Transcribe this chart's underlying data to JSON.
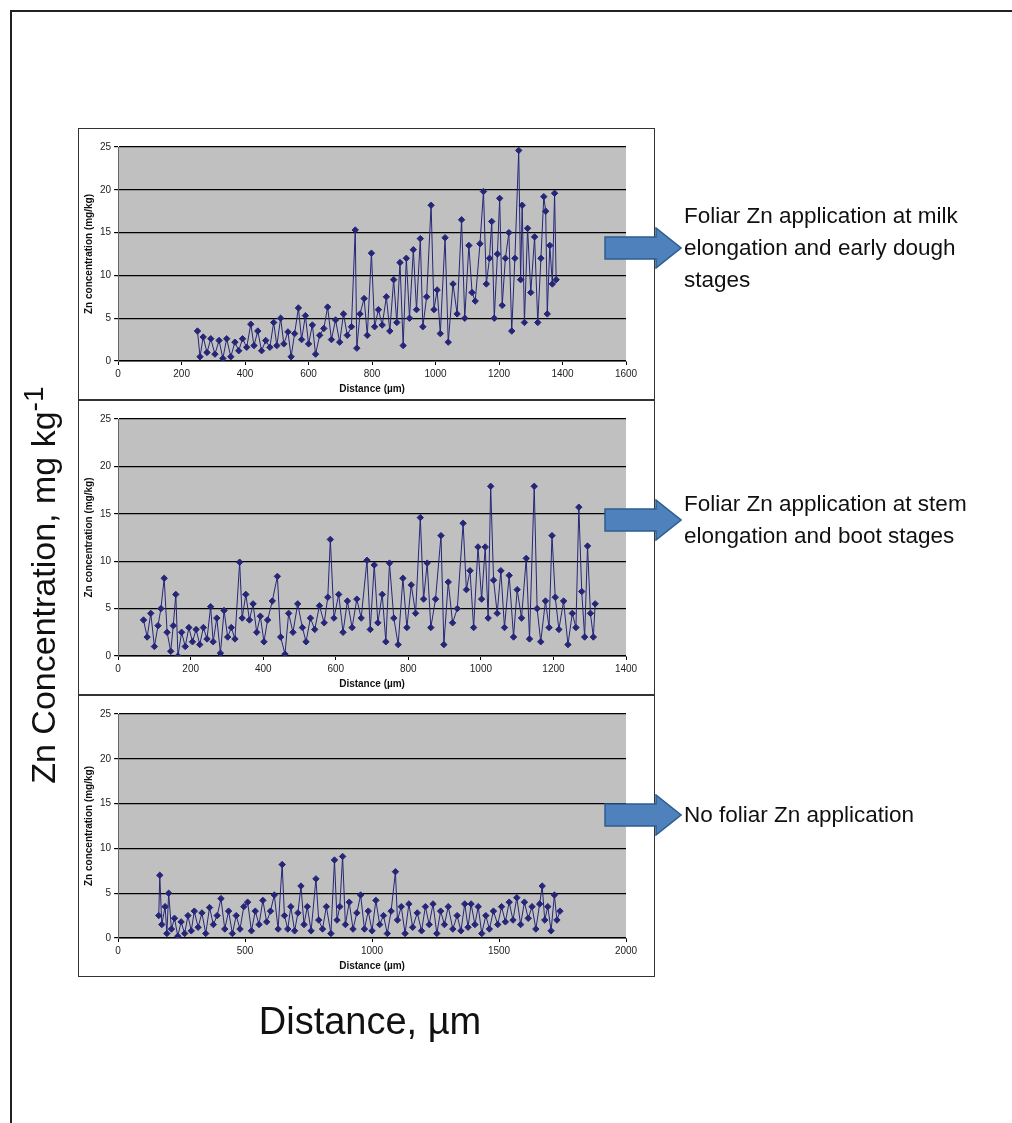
{
  "chart_data": [
    {
      "type": "line",
      "xlabel": "Distance (µm)",
      "ylabel": "Zn concentration (mg/kg)",
      "color": "#262678",
      "marker": "diamond",
      "grid": "y",
      "xlim": [
        0,
        1600
      ],
      "xticks": [
        0,
        200,
        400,
        600,
        800,
        1000,
        1200,
        1400,
        1600
      ],
      "ylim": [
        0,
        25
      ],
      "yticks": [
        0,
        5,
        10,
        15,
        20,
        25
      ],
      "annotations": [
        "Foliar Zn application at milk elongation and early dough stages",
        "Zn Concentration, mg kg$^{-1}$"
      ],
      "x": [
        250,
        258,
        268,
        280,
        292,
        305,
        318,
        330,
        342,
        355,
        368,
        380,
        392,
        405,
        418,
        428,
        440,
        452,
        465,
        478,
        490,
        500,
        512,
        522,
        535,
        545,
        556,
        568,
        578,
        590,
        600,
        612,
        622,
        635,
        648,
        660,
        672,
        685,
        698,
        710,
        722,
        735,
        747,
        752,
        762,
        775,
        785,
        798,
        808,
        820,
        832,
        845,
        856,
        868,
        878,
        888,
        898,
        908,
        918,
        930,
        940,
        952,
        960,
        972,
        986,
        995,
        1005,
        1015,
        1030,
        1040,
        1055,
        1068,
        1082,
        1092,
        1105,
        1115,
        1125,
        1140,
        1151,
        1160,
        1170,
        1177,
        1185,
        1195,
        1202,
        1210,
        1220,
        1231,
        1240,
        1250,
        1262,
        1268,
        1273,
        1280,
        1290,
        1300,
        1312,
        1322,
        1332,
        1341,
        1347,
        1352,
        1360,
        1368,
        1375,
        1380
      ],
      "values": [
        3.5,
        0.5,
        2.8,
        1.0,
        2.6,
        0.8,
        2.4,
        0.3,
        2.6,
        0.5,
        2.2,
        1.2,
        2.6,
        1.6,
        4.3,
        1.8,
        3.5,
        1.2,
        2.4,
        1.6,
        4.5,
        1.8,
        5.0,
        2.0,
        3.4,
        0.5,
        3.2,
        6.2,
        2.5,
        5.3,
        2.0,
        4.2,
        0.8,
        3.0,
        3.8,
        6.3,
        2.5,
        4.8,
        2.2,
        5.5,
        3.0,
        4.0,
        15.3,
        1.5,
        5.5,
        7.3,
        3.0,
        12.6,
        4.0,
        6.0,
        4.2,
        7.5,
        3.5,
        9.5,
        4.5,
        11.5,
        1.8,
        12.0,
        5.0,
        13.0,
        6.0,
        14.3,
        4.0,
        7.5,
        18.2,
        6.0,
        8.3,
        3.2,
        14.4,
        2.2,
        9.0,
        5.5,
        16.5,
        5.0,
        13.5,
        8.0,
        7.0,
        13.7,
        19.8,
        9.0,
        12.0,
        16.3,
        5.0,
        12.5,
        19.0,
        6.5,
        12.0,
        15.0,
        3.5,
        12.0,
        24.6,
        9.5,
        18.2,
        4.5,
        15.5,
        8.0,
        14.5,
        4.5,
        12.0,
        19.2,
        17.5,
        5.5,
        13.5,
        9.0,
        19.6,
        9.5
      ]
    },
    {
      "type": "line",
      "xlabel": "Distance (µm)",
      "ylabel": "Zn concentration (mg/kg)",
      "color": "#262678",
      "marker": "diamond",
      "grid": "y",
      "xlim": [
        0,
        1400
      ],
      "xticks": [
        0,
        200,
        400,
        600,
        800,
        1000,
        1200,
        1400
      ],
      "ylim": [
        0,
        25
      ],
      "yticks": [
        0,
        5,
        10,
        15,
        20,
        25
      ],
      "annotations": [
        "Foliar Zn application at stem elongation and boot stages"
      ],
      "x": [
        70,
        80,
        90,
        100,
        110,
        118,
        127,
        135,
        145,
        152,
        159,
        165,
        175,
        185,
        195,
        205,
        215,
        225,
        235,
        245,
        255,
        262,
        272,
        282,
        292,
        302,
        312,
        322,
        335,
        342,
        352,
        362,
        372,
        382,
        392,
        402,
        412,
        425,
        439,
        448,
        460,
        470,
        482,
        495,
        508,
        518,
        530,
        542,
        555,
        568,
        578,
        585,
        595,
        608,
        620,
        632,
        645,
        658,
        670,
        686,
        695,
        706,
        716,
        728,
        738,
        748,
        760,
        772,
        785,
        796,
        808,
        820,
        833,
        842,
        852,
        862,
        875,
        890,
        898,
        910,
        922,
        935,
        951,
        960,
        970,
        980,
        992,
        1002,
        1012,
        1020,
        1027,
        1035,
        1045,
        1055,
        1065,
        1078,
        1090,
        1100,
        1112,
        1125,
        1134,
        1147,
        1155,
        1165,
        1178,
        1188,
        1196,
        1205,
        1215,
        1228,
        1240,
        1252,
        1262,
        1270,
        1278,
        1286,
        1294,
        1302,
        1310,
        1315
      ],
      "values": [
        3.8,
        2.0,
        4.5,
        1.0,
        3.2,
        5.0,
        8.2,
        2.5,
        0.5,
        3.2,
        6.5,
        0.0,
        2.5,
        1.0,
        3.0,
        1.5,
        2.8,
        1.2,
        3.0,
        1.8,
        5.2,
        1.5,
        4.0,
        0.3,
        4.8,
        2.0,
        3.0,
        1.8,
        9.9,
        4.0,
        6.5,
        3.8,
        5.5,
        2.5,
        4.2,
        1.5,
        3.8,
        5.8,
        8.4,
        2.0,
        0.2,
        4.5,
        2.5,
        5.5,
        3.0,
        1.5,
        4.0,
        2.8,
        5.3,
        3.5,
        6.2,
        12.3,
        4.0,
        6.5,
        2.5,
        5.8,
        3.0,
        6.0,
        4.0,
        10.1,
        2.8,
        9.6,
        3.5,
        6.5,
        1.5,
        9.8,
        4.0,
        1.2,
        8.2,
        3.0,
        7.5,
        4.5,
        14.6,
        6.0,
        9.8,
        3.0,
        6.0,
        12.7,
        1.2,
        7.8,
        3.5,
        5.0,
        14.0,
        7.0,
        9.0,
        3.0,
        11.5,
        6.0,
        11.5,
        4.0,
        17.9,
        8.0,
        4.5,
        9.0,
        3.0,
        8.5,
        2.0,
        7.0,
        4.0,
        10.3,
        1.8,
        17.9,
        5.0,
        1.5,
        5.8,
        3.0,
        12.7,
        6.2,
        2.8,
        5.8,
        1.2,
        4.5,
        3.0,
        15.7,
        6.8,
        2.0,
        11.6,
        4.5,
        2.0,
        5.5
      ]
    },
    {
      "type": "line",
      "xlabel": "Distance (µm)",
      "ylabel": "Zn concentration (mg/kg)",
      "color": "#262678",
      "marker": "diamond",
      "grid": "y",
      "xlim": [
        0,
        2000
      ],
      "xticks": [
        0,
        500,
        1000,
        1500,
        2000
      ],
      "ylim": [
        0,
        25
      ],
      "yticks": [
        0,
        5,
        10,
        15,
        20,
        25
      ],
      "annotations": [
        "No foliar Zn application",
        "Distance, µm"
      ],
      "x": [
        160,
        164,
        172,
        185,
        192,
        199,
        210,
        222,
        235,
        248,
        262,
        275,
        288,
        300,
        315,
        330,
        345,
        360,
        375,
        390,
        405,
        420,
        435,
        450,
        465,
        480,
        495,
        510,
        525,
        540,
        555,
        570,
        585,
        600,
        615,
        630,
        646,
        655,
        668,
        680,
        695,
        708,
        720,
        732,
        745,
        760,
        779,
        790,
        805,
        820,
        838,
        852,
        862,
        873,
        884,
        895,
        910,
        925,
        940,
        955,
        970,
        985,
        1000,
        1015,
        1030,
        1045,
        1060,
        1075,
        1092,
        1100,
        1115,
        1130,
        1145,
        1160,
        1178,
        1195,
        1210,
        1225,
        1240,
        1255,
        1270,
        1285,
        1300,
        1318,
        1335,
        1350,
        1365,
        1378,
        1390,
        1405,
        1418,
        1432,
        1448,
        1462,
        1478,
        1495,
        1510,
        1525,
        1540,
        1555,
        1570,
        1585,
        1600,
        1615,
        1630,
        1645,
        1660,
        1670,
        1680,
        1692,
        1705,
        1718,
        1728,
        1740
      ],
      "values": [
        2.5,
        7.0,
        1.5,
        3.5,
        0.5,
        5.0,
        1.0,
        2.2,
        0.2,
        1.8,
        0.5,
        2.5,
        0.8,
        3.0,
        1.2,
        2.8,
        0.5,
        3.4,
        1.5,
        2.5,
        4.4,
        1.0,
        3.0,
        0.5,
        2.5,
        1.0,
        3.5,
        4.0,
        0.8,
        3.0,
        1.5,
        4.2,
        1.8,
        3.0,
        4.8,
        1.0,
        8.2,
        2.5,
        1.0,
        3.5,
        0.8,
        2.8,
        5.8,
        1.5,
        3.5,
        0.8,
        6.6,
        2.0,
        1.0,
        3.5,
        0.5,
        8.7,
        2.0,
        3.5,
        9.1,
        1.5,
        4.0,
        1.0,
        2.8,
        4.8,
        1.0,
        3.0,
        0.8,
        4.2,
        1.5,
        2.5,
        0.5,
        3.0,
        7.4,
        2.0,
        3.5,
        0.5,
        3.8,
        1.2,
        2.8,
        0.8,
        3.5,
        1.5,
        3.8,
        0.5,
        3.0,
        1.5,
        3.5,
        1.0,
        2.5,
        0.8,
        3.8,
        1.2,
        3.8,
        1.5,
        3.5,
        0.5,
        2.5,
        1.0,
        3.0,
        1.5,
        3.5,
        1.8,
        4.0,
        2.0,
        4.5,
        1.5,
        4.0,
        2.2,
        3.5,
        1.0,
        3.8,
        5.8,
        2.0,
        3.5,
        0.8,
        4.8,
        2.0,
        3.0
      ]
    }
  ]
}
